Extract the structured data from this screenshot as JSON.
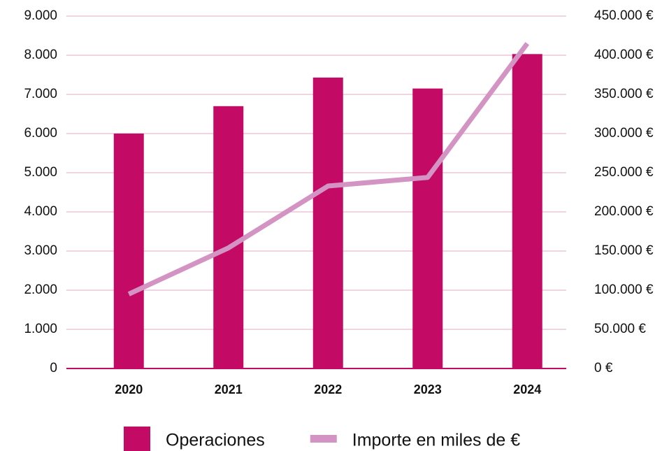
{
  "chart_data": {
    "type": "bar_line",
    "categories": [
      "2020",
      "2021",
      "2022",
      "2023",
      "2024"
    ],
    "series": [
      {
        "name": "Operaciones",
        "type": "bar",
        "color": "#c30b66",
        "values": [
          6000,
          6700,
          7430,
          7150,
          8030
        ]
      },
      {
        "name": "Importe en miles de €",
        "type": "line",
        "axis": "y2",
        "color": "#d393c3",
        "values": [
          95000,
          154000,
          233000,
          244000,
          415000
        ]
      }
    ],
    "ylim": [
      0,
      9000
    ],
    "yticks": [
      0,
      {
        "value": 1000,
        "label": "1.000"
      },
      {
        "value": 2000,
        "label": "2.000"
      },
      {
        "value": 3000,
        "label": "3.000"
      },
      {
        "value": 4000,
        "label": "4.000"
      },
      {
        "value": 5000,
        "label": "5.000"
      },
      {
        "value": 6000,
        "label": "6.000"
      },
      {
        "value": 7000,
        "label": "7.000"
      },
      {
        "value": 8000,
        "label": "8.000"
      },
      {
        "value": 9000,
        "label": "9.000"
      }
    ],
    "y2lim": [
      0,
      450000
    ],
    "y2ticks": [
      {
        "value": 0,
        "label": "0 €"
      },
      {
        "value": 50000,
        "label": "50.000 €"
      },
      {
        "value": 100000,
        "label": "100.000 €"
      },
      {
        "value": 150000,
        "label": "150.000 €"
      },
      {
        "value": 200000,
        "label": "200.000 €"
      },
      {
        "value": 250000,
        "label": "250.000 €"
      },
      {
        "value": 300000,
        "label": "300.000 €"
      },
      {
        "value": 350000,
        "label": "350.000 €"
      },
      {
        "value": 400000,
        "label": "400.000 €"
      },
      {
        "value": 450000,
        "label": "450.000 €"
      }
    ],
    "grid": true,
    "legend": "bottom"
  }
}
